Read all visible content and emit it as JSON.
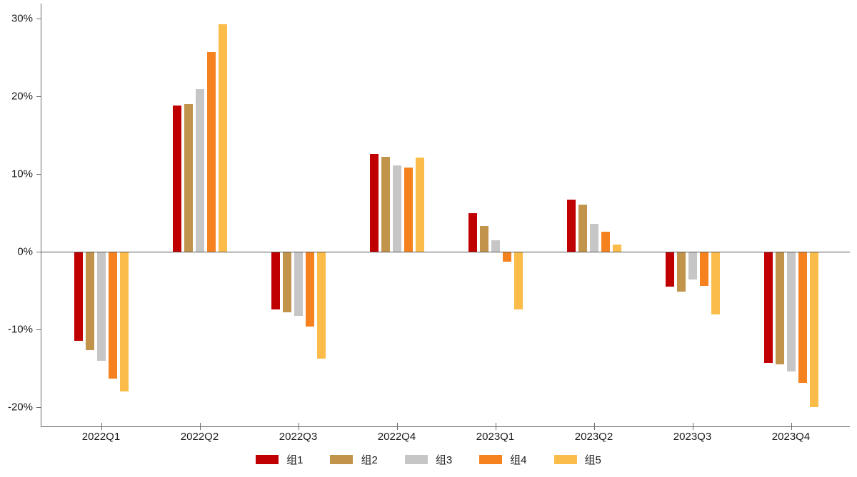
{
  "chart_data": {
    "type": "bar",
    "variant": "grouped-vertical",
    "title": "",
    "xlabel": "",
    "ylabel": "",
    "categories": [
      "2022Q1",
      "2022Q2",
      "2022Q3",
      "2022Q4",
      "2023Q1",
      "2023Q2",
      "2023Q3",
      "2023Q4"
    ],
    "series": [
      {
        "name": "组1",
        "color": "#c00000",
        "values": [
          -11.4,
          18.8,
          -7.3,
          12.6,
          5.0,
          6.7,
          -4.4,
          -14.2
        ]
      },
      {
        "name": "组2",
        "color": "#c2944b",
        "values": [
          -12.6,
          19.0,
          -7.7,
          12.2,
          3.3,
          6.1,
          -5.0,
          -14.4
        ]
      },
      {
        "name": "组3",
        "color": "#c6c6c6",
        "values": [
          -13.9,
          20.9,
          -8.2,
          11.1,
          1.5,
          3.6,
          -3.5,
          -15.3
        ]
      },
      {
        "name": "组4",
        "color": "#f5821f",
        "values": [
          -16.2,
          25.7,
          -9.5,
          10.8,
          -1.2,
          2.6,
          -4.3,
          -16.8
        ]
      },
      {
        "name": "组5",
        "color": "#fbbc4a",
        "values": [
          -17.9,
          29.3,
          -13.7,
          12.1,
          -7.3,
          0.9,
          -8.0,
          -19.9
        ]
      }
    ],
    "y_ticks": [
      30,
      20,
      10,
      0,
      -10,
      -20
    ],
    "y_tick_labels": [
      "30%",
      "20%",
      "10%",
      "0%",
      "-10%",
      "-20%"
    ],
    "ylim": [
      -22.5,
      31.9
    ],
    "grid": false,
    "zero_line": true,
    "legend_position": "bottom",
    "axis_color": "#6b6b6b",
    "text_color": "#1a1a1a"
  }
}
